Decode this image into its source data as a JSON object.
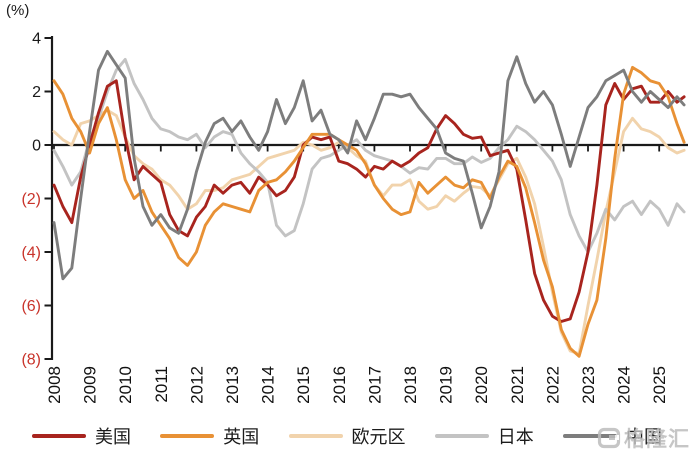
{
  "figure": {
    "unit_label": "(%)",
    "watermark_text": "格隆汇",
    "axis_color": "#1a1a1a",
    "negative_tick_color": "#C9342B",
    "y_ticks": [
      {
        "label": "4",
        "value": 4,
        "negative": false
      },
      {
        "label": "2",
        "value": 2,
        "negative": false
      },
      {
        "label": "0",
        "value": 0,
        "negative": false
      },
      {
        "label": "(2)",
        "value": -2,
        "negative": true
      },
      {
        "label": "(4)",
        "value": -4,
        "negative": true
      },
      {
        "label": "(6)",
        "value": -6,
        "negative": true
      },
      {
        "label": "(8)",
        "value": -8,
        "negative": true
      }
    ],
    "x_tick_years": [
      "2008",
      "2009",
      "2010",
      "2011",
      "2012",
      "2013",
      "2014",
      "2015",
      "2016",
      "2017",
      "2018",
      "2019",
      "2020",
      "2021",
      "2022",
      "2023",
      "2024",
      "2025"
    ]
  },
  "chart_data": {
    "type": "line",
    "title": "",
    "xlabel": "",
    "ylabel": "(%)",
    "ylim": [
      -8,
      4
    ],
    "xlim": [
      2008,
      2025.9
    ],
    "grid": false,
    "legend_position": "bottom",
    "draw_order": [
      "eurozone",
      "japan",
      "us",
      "uk",
      "china"
    ],
    "x": [
      2008,
      2008.25,
      2008.5,
      2008.75,
      2009,
      2009.25,
      2009.5,
      2009.75,
      2010,
      2010.25,
      2010.5,
      2010.75,
      2011,
      2011.25,
      2011.5,
      2011.75,
      2012,
      2012.25,
      2012.5,
      2012.75,
      2013,
      2013.25,
      2013.5,
      2013.75,
      2014,
      2014.25,
      2014.5,
      2014.75,
      2015,
      2015.25,
      2015.5,
      2015.75,
      2016,
      2016.25,
      2016.5,
      2016.75,
      2017,
      2017.25,
      2017.5,
      2017.75,
      2018,
      2018.25,
      2018.5,
      2018.75,
      2019,
      2019.25,
      2019.5,
      2019.75,
      2020,
      2020.25,
      2020.5,
      2020.75,
      2021,
      2021.25,
      2021.5,
      2021.75,
      2022,
      2022.25,
      2022.5,
      2022.75,
      2023,
      2023.25,
      2023.5,
      2023.75,
      2024,
      2024.25,
      2024.5,
      2024.75,
      2025,
      2025.25,
      2025.5,
      2025.7
    ],
    "series": [
      {
        "key": "us",
        "name": "美国",
        "color": "#A8241E",
        "values": [
          -1.5,
          -2.3,
          -2.9,
          -1.2,
          0.0,
          1.2,
          2.2,
          2.4,
          0.3,
          -1.3,
          -0.8,
          -1.1,
          -1.4,
          -2.6,
          -3.2,
          -3.4,
          -2.7,
          -2.3,
          -1.5,
          -1.8,
          -1.5,
          -1.4,
          -1.8,
          -1.2,
          -1.5,
          -1.9,
          -1.7,
          -1.2,
          0.0,
          0.3,
          0.2,
          0.3,
          -0.6,
          -0.7,
          -0.9,
          -1.2,
          -0.8,
          -0.9,
          -0.6,
          -0.8,
          -0.6,
          -0.3,
          -0.1,
          0.6,
          1.1,
          0.8,
          0.4,
          0.25,
          0.3,
          -0.4,
          -0.3,
          -0.2,
          -0.9,
          -2.8,
          -4.8,
          -5.8,
          -6.4,
          -6.6,
          -6.5,
          -5.5,
          -4.0,
          -1.5,
          1.5,
          2.3,
          1.7,
          2.1,
          2.2,
          1.6,
          1.6,
          2.0,
          1.6,
          1.8
        ]
      },
      {
        "key": "uk",
        "name": "英国",
        "color": "#E89135",
        "values": [
          2.4,
          1.9,
          1.0,
          0.5,
          -0.3,
          0.8,
          1.4,
          0.2,
          -1.3,
          -2.0,
          -1.7,
          -2.5,
          -3.0,
          -3.5,
          -4.2,
          -4.5,
          -4.0,
          -3.0,
          -2.5,
          -2.2,
          -2.3,
          -2.4,
          -2.5,
          -1.7,
          -1.4,
          -1.3,
          -1.0,
          -0.6,
          -0.1,
          0.4,
          0.4,
          0.4,
          0.2,
          0.0,
          -0.2,
          -0.7,
          -1.5,
          -2.0,
          -2.4,
          -2.6,
          -2.5,
          -1.4,
          -1.8,
          -1.5,
          -1.2,
          -1.5,
          -1.6,
          -1.3,
          -1.4,
          -2.0,
          -1.2,
          -0.6,
          -0.8,
          -1.6,
          -2.9,
          -4.3,
          -5.3,
          -6.9,
          -7.6,
          -7.9,
          -6.7,
          -5.8,
          -3.5,
          -0.5,
          1.9,
          2.9,
          2.7,
          2.4,
          2.3,
          1.8,
          0.8,
          0.1
        ]
      },
      {
        "key": "eurozone",
        "name": "欧元区",
        "color": "#F1D3AC",
        "values": [
          0.5,
          0.2,
          0.0,
          0.8,
          0.9,
          1.1,
          1.3,
          1.1,
          0.3,
          -0.4,
          -0.7,
          -0.9,
          -1.3,
          -1.5,
          -1.9,
          -2.4,
          -2.2,
          -1.7,
          -1.7,
          -1.6,
          -1.3,
          -1.2,
          -1.1,
          -0.8,
          -0.5,
          -0.4,
          -0.3,
          -0.2,
          0.1,
          0.0,
          -0.2,
          -0.1,
          0.1,
          -0.1,
          -0.4,
          -0.6,
          -1.5,
          -1.9,
          -1.5,
          -1.5,
          -1.3,
          -2.1,
          -2.4,
          -2.3,
          -1.9,
          -2.1,
          -1.8,
          -1.55,
          -1.6,
          -1.9,
          -1.3,
          -0.7,
          -0.5,
          -1.2,
          -2.2,
          -3.8,
          -5.5,
          -7.0,
          -7.7,
          -7.8,
          -6.0,
          -4.3,
          -2.5,
          -1.0,
          0.5,
          1.0,
          0.6,
          0.5,
          0.3,
          -0.1,
          -0.3,
          -0.2
        ]
      },
      {
        "key": "japan",
        "name": "日本",
        "color": "#C3C3C3",
        "values": [
          -0.2,
          -0.8,
          -1.5,
          -1.0,
          0.2,
          1.0,
          2.0,
          2.8,
          3.2,
          2.3,
          1.7,
          1.0,
          0.6,
          0.5,
          0.3,
          0.2,
          0.4,
          -0.1,
          0.3,
          0.5,
          0.4,
          -0.3,
          -0.7,
          -1.0,
          -1.4,
          -3.0,
          -3.4,
          -3.2,
          -2.2,
          -0.9,
          -0.5,
          -0.4,
          -0.2,
          0.0,
          0.2,
          -0.2,
          -0.4,
          -0.5,
          -0.6,
          -0.8,
          -1.05,
          -0.85,
          -0.9,
          -0.5,
          -0.5,
          -0.7,
          -0.7,
          -0.45,
          -0.65,
          -0.5,
          -0.1,
          0.2,
          0.7,
          0.5,
          0.2,
          -0.2,
          -0.6,
          -1.3,
          -2.6,
          -3.4,
          -4.0,
          -3.3,
          -2.4,
          -2.8,
          -2.3,
          -2.1,
          -2.6,
          -2.1,
          -2.4,
          -3.0,
          -2.2,
          -2.5
        ]
      },
      {
        "key": "china",
        "name": "中国",
        "color": "#7D7D7D",
        "values": [
          -2.9,
          -5.0,
          -4.6,
          -2.0,
          0.5,
          2.8,
          3.5,
          3.0,
          2.5,
          -0.5,
          -2.3,
          -3.0,
          -2.6,
          -3.1,
          -3.3,
          -2.4,
          -1.0,
          0.1,
          0.8,
          1.0,
          0.5,
          0.9,
          0.3,
          -0.2,
          0.5,
          1.7,
          0.8,
          1.4,
          2.4,
          0.9,
          1.3,
          0.4,
          0.2,
          -0.3,
          0.9,
          0.2,
          1.0,
          1.9,
          1.9,
          1.8,
          1.9,
          1.4,
          1.0,
          0.6,
          -0.3,
          -0.5,
          -0.6,
          -1.8,
          -3.1,
          -2.3,
          -1.0,
          2.4,
          3.3,
          2.3,
          1.6,
          2.0,
          1.5,
          0.4,
          -0.8,
          0.3,
          1.4,
          1.8,
          2.4,
          2.6,
          2.8,
          2.0,
          1.6,
          2.0,
          1.7,
          1.4,
          1.8,
          1.5
        ]
      }
    ]
  }
}
